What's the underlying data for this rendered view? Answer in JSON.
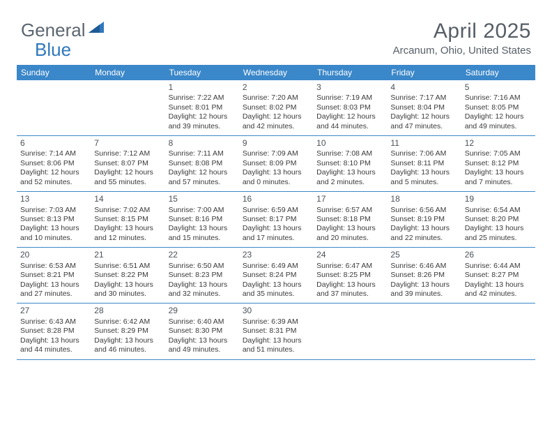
{
  "logo": {
    "word1": "General",
    "word2": "Blue"
  },
  "title": {
    "month": "April 2025",
    "location": "Arcanum, Ohio, United States"
  },
  "theme": {
    "header_bg": "#3a87c9",
    "header_text": "#ffffff",
    "row_border": "#3a87c9",
    "body_text": "#3a3a3a",
    "title_text": "#565e66",
    "logo_gray": "#5c6670",
    "logo_blue": "#2f78bd",
    "background": "#ffffff",
    "daynum_fontsize": 12,
    "cell_fontsize": 10.5
  },
  "weekdays": [
    "Sunday",
    "Monday",
    "Tuesday",
    "Wednesday",
    "Thursday",
    "Friday",
    "Saturday"
  ],
  "weeks": [
    [
      null,
      null,
      {
        "n": "1",
        "sr": "7:22 AM",
        "ss": "8:01 PM",
        "dl": "12 hours and 39 minutes."
      },
      {
        "n": "2",
        "sr": "7:20 AM",
        "ss": "8:02 PM",
        "dl": "12 hours and 42 minutes."
      },
      {
        "n": "3",
        "sr": "7:19 AM",
        "ss": "8:03 PM",
        "dl": "12 hours and 44 minutes."
      },
      {
        "n": "4",
        "sr": "7:17 AM",
        "ss": "8:04 PM",
        "dl": "12 hours and 47 minutes."
      },
      {
        "n": "5",
        "sr": "7:16 AM",
        "ss": "8:05 PM",
        "dl": "12 hours and 49 minutes."
      }
    ],
    [
      {
        "n": "6",
        "sr": "7:14 AM",
        "ss": "8:06 PM",
        "dl": "12 hours and 52 minutes."
      },
      {
        "n": "7",
        "sr": "7:12 AM",
        "ss": "8:07 PM",
        "dl": "12 hours and 55 minutes."
      },
      {
        "n": "8",
        "sr": "7:11 AM",
        "ss": "8:08 PM",
        "dl": "12 hours and 57 minutes."
      },
      {
        "n": "9",
        "sr": "7:09 AM",
        "ss": "8:09 PM",
        "dl": "13 hours and 0 minutes."
      },
      {
        "n": "10",
        "sr": "7:08 AM",
        "ss": "8:10 PM",
        "dl": "13 hours and 2 minutes."
      },
      {
        "n": "11",
        "sr": "7:06 AM",
        "ss": "8:11 PM",
        "dl": "13 hours and 5 minutes."
      },
      {
        "n": "12",
        "sr": "7:05 AM",
        "ss": "8:12 PM",
        "dl": "13 hours and 7 minutes."
      }
    ],
    [
      {
        "n": "13",
        "sr": "7:03 AM",
        "ss": "8:13 PM",
        "dl": "13 hours and 10 minutes."
      },
      {
        "n": "14",
        "sr": "7:02 AM",
        "ss": "8:15 PM",
        "dl": "13 hours and 12 minutes."
      },
      {
        "n": "15",
        "sr": "7:00 AM",
        "ss": "8:16 PM",
        "dl": "13 hours and 15 minutes."
      },
      {
        "n": "16",
        "sr": "6:59 AM",
        "ss": "8:17 PM",
        "dl": "13 hours and 17 minutes."
      },
      {
        "n": "17",
        "sr": "6:57 AM",
        "ss": "8:18 PM",
        "dl": "13 hours and 20 minutes."
      },
      {
        "n": "18",
        "sr": "6:56 AM",
        "ss": "8:19 PM",
        "dl": "13 hours and 22 minutes."
      },
      {
        "n": "19",
        "sr": "6:54 AM",
        "ss": "8:20 PM",
        "dl": "13 hours and 25 minutes."
      }
    ],
    [
      {
        "n": "20",
        "sr": "6:53 AM",
        "ss": "8:21 PM",
        "dl": "13 hours and 27 minutes."
      },
      {
        "n": "21",
        "sr": "6:51 AM",
        "ss": "8:22 PM",
        "dl": "13 hours and 30 minutes."
      },
      {
        "n": "22",
        "sr": "6:50 AM",
        "ss": "8:23 PM",
        "dl": "13 hours and 32 minutes."
      },
      {
        "n": "23",
        "sr": "6:49 AM",
        "ss": "8:24 PM",
        "dl": "13 hours and 35 minutes."
      },
      {
        "n": "24",
        "sr": "6:47 AM",
        "ss": "8:25 PM",
        "dl": "13 hours and 37 minutes."
      },
      {
        "n": "25",
        "sr": "6:46 AM",
        "ss": "8:26 PM",
        "dl": "13 hours and 39 minutes."
      },
      {
        "n": "26",
        "sr": "6:44 AM",
        "ss": "8:27 PM",
        "dl": "13 hours and 42 minutes."
      }
    ],
    [
      {
        "n": "27",
        "sr": "6:43 AM",
        "ss": "8:28 PM",
        "dl": "13 hours and 44 minutes."
      },
      {
        "n": "28",
        "sr": "6:42 AM",
        "ss": "8:29 PM",
        "dl": "13 hours and 46 minutes."
      },
      {
        "n": "29",
        "sr": "6:40 AM",
        "ss": "8:30 PM",
        "dl": "13 hours and 49 minutes."
      },
      {
        "n": "30",
        "sr": "6:39 AM",
        "ss": "8:31 PM",
        "dl": "13 hours and 51 minutes."
      },
      null,
      null,
      null
    ]
  ],
  "labels": {
    "sunrise": "Sunrise: ",
    "sunset": "Sunset: ",
    "daylight": "Daylight: "
  }
}
